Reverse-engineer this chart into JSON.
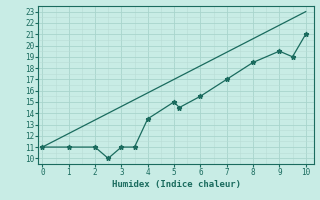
{
  "data_x": [
    0,
    1,
    2,
    2.5,
    3,
    3.5,
    4,
    5,
    5.2,
    6,
    7,
    8,
    9,
    9.5,
    10
  ],
  "data_y": [
    11,
    11,
    11,
    10,
    11,
    11,
    13.5,
    15,
    14.5,
    15.5,
    17,
    18.5,
    19.5,
    19,
    21
  ],
  "trend_x": [
    0,
    10
  ],
  "trend_y": [
    11,
    23
  ],
  "line_color": "#1a6b5e",
  "bg_color": "#c8ece5",
  "grid_major_color": "#a8d5cc",
  "grid_minor_color": "#b8ddd6",
  "xlabel": "Humidex (Indice chaleur)",
  "xlim": [
    -0.15,
    10.3
  ],
  "ylim": [
    9.5,
    23.5
  ],
  "xticks": [
    0,
    1,
    2,
    3,
    4,
    5,
    6,
    7,
    8,
    9,
    10
  ],
  "yticks": [
    10,
    11,
    12,
    13,
    14,
    15,
    16,
    17,
    18,
    19,
    20,
    21,
    22,
    23
  ]
}
